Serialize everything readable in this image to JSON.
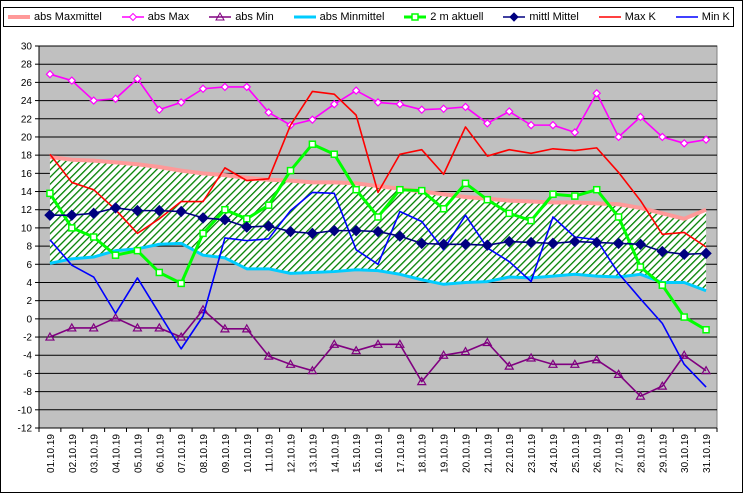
{
  "chart_data": {
    "type": "line",
    "title": "",
    "xlabel": "",
    "ylabel": "",
    "ylim": [
      -12,
      30
    ],
    "ytick_step": 2,
    "grid": true,
    "plot_background": "#c0c0c0",
    "legend_position": "top",
    "categories": [
      "01.10.19",
      "02.10.19",
      "03.10.19",
      "04.10.19",
      "05.10.19",
      "06.10.19",
      "07.10.19",
      "08.10.19",
      "09.10.19",
      "10.10.19",
      "11.10.19",
      "12.10.19",
      "13.10.19",
      "14.10.19",
      "15.10.19",
      "16.10.19",
      "17.10.19",
      "18.10.19",
      "19.10.19",
      "20.10.19",
      "21.10.19",
      "22.10.19",
      "23.10.19",
      "24.10.19",
      "25.10.19",
      "26.10.19",
      "27.10.19",
      "28.10.19",
      "29.10.19",
      "30.10.19",
      "31.10.19"
    ],
    "band": {
      "upper_series": "abs Maxmittel",
      "lower_series": "abs Minmittel",
      "fill": "hatched green"
    },
    "series": [
      {
        "name": "abs Maxmittel",
        "color": "#ff9999",
        "marker": "none",
        "width": 4,
        "values": [
          17.8,
          17.5,
          17.4,
          17.2,
          17.0,
          16.7,
          16.3,
          16.0,
          15.8,
          15.5,
          15.3,
          15.2,
          15.0,
          15.0,
          14.9,
          14.6,
          14.3,
          14.0,
          13.7,
          13.4,
          13.2,
          13.0,
          12.9,
          12.8,
          12.8,
          12.7,
          12.6,
          12.2,
          11.6,
          11.0,
          12.0
        ]
      },
      {
        "name": "abs Max",
        "color": "#ff00ff",
        "marker": "diamond-open",
        "values": [
          26.9,
          26.2,
          24.0,
          24.2,
          26.4,
          23.0,
          23.8,
          25.3,
          25.5,
          25.5,
          22.7,
          21.3,
          21.9,
          23.6,
          25.1,
          23.8,
          23.6,
          23.0,
          23.1,
          23.3,
          21.5,
          22.8,
          21.3,
          21.3,
          20.5,
          24.8,
          20.0,
          22.2,
          20.0,
          19.3,
          19.7
        ]
      },
      {
        "name": "abs Min",
        "color": "#800080",
        "marker": "triangle-open",
        "values": [
          -2.0,
          -1.0,
          -1.0,
          0.1,
          -1.0,
          -1.0,
          -2.0,
          1.0,
          -1.1,
          -1.1,
          -4.1,
          -5.0,
          -5.7,
          -2.8,
          -3.5,
          -2.8,
          -2.8,
          -6.9,
          -4.0,
          -3.6,
          -2.6,
          -5.2,
          -4.3,
          -5.0,
          -5.0,
          -4.5,
          -6.1,
          -8.5,
          -7.4,
          -4.0,
          -5.7
        ]
      },
      {
        "name": "abs Minmittel",
        "color": "#00ccff",
        "marker": "none",
        "width": 3,
        "values": [
          6.1,
          6.6,
          6.8,
          7.5,
          7.7,
          8.2,
          8.3,
          7.0,
          6.7,
          5.5,
          5.5,
          5.0,
          5.1,
          5.2,
          5.4,
          5.3,
          4.9,
          4.3,
          3.8,
          4.0,
          4.1,
          4.6,
          4.5,
          4.7,
          4.9,
          4.7,
          4.6,
          4.9,
          4.0,
          4.0,
          3.1
        ]
      },
      {
        "name": "2 m aktuell",
        "color": "#00ff00",
        "marker": "square-open",
        "width": 3,
        "values": [
          13.8,
          10.0,
          9.0,
          7.0,
          7.5,
          5.1,
          3.9,
          9.4,
          12.0,
          11.0,
          12.5,
          16.3,
          19.2,
          18.1,
          14.2,
          11.2,
          14.2,
          14.1,
          12.1,
          14.9,
          13.1,
          11.6,
          10.8,
          13.7,
          13.5,
          14.2,
          11.2,
          5.7,
          3.7,
          0.2,
          -1.2
        ]
      },
      {
        "name": "mittl Mittel",
        "color": "#000080",
        "marker": "diamond-filled",
        "values": [
          11.4,
          11.4,
          11.6,
          12.2,
          11.9,
          11.9,
          11.8,
          11.1,
          10.9,
          10.1,
          10.2,
          9.6,
          9.4,
          9.7,
          9.7,
          9.6,
          9.1,
          8.3,
          8.2,
          8.2,
          8.1,
          8.5,
          8.4,
          8.3,
          8.5,
          8.4,
          8.3,
          8.2,
          7.4,
          7.1,
          7.2
        ]
      },
      {
        "name": "Max K",
        "color": "#ff0000",
        "marker": "none",
        "values": [
          18.1,
          15.0,
          14.2,
          12.0,
          9.4,
          11.0,
          12.9,
          12.9,
          16.6,
          15.2,
          15.4,
          21.3,
          25.0,
          24.7,
          22.4,
          13.9,
          18.1,
          18.6,
          15.9,
          21.1,
          17.9,
          18.6,
          18.2,
          18.7,
          18.5,
          18.8,
          16.1,
          13.0,
          9.3,
          9.5,
          7.9
        ]
      },
      {
        "name": "Min K",
        "color": "#0000ff",
        "marker": "none",
        "values": [
          8.7,
          5.9,
          4.6,
          0.6,
          4.5,
          0.6,
          -3.3,
          0.3,
          8.9,
          8.6,
          8.8,
          11.9,
          13.9,
          13.8,
          7.6,
          6.0,
          11.8,
          10.7,
          7.6,
          11.4,
          7.8,
          6.3,
          4.1,
          11.2,
          9.0,
          8.7,
          5.0,
          2.2,
          -0.5,
          -5.0,
          -7.5
        ]
      }
    ]
  }
}
